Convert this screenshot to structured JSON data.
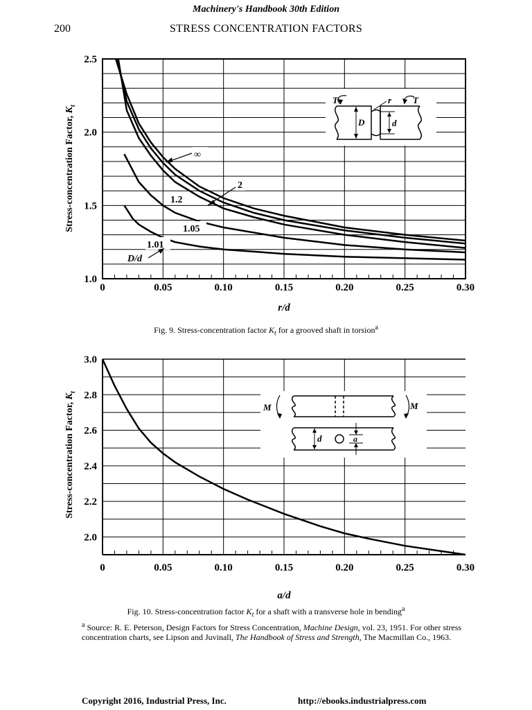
{
  "header": {
    "book_title": "Machinery's Handbook 30th Edition",
    "page_number": "200",
    "section_title": "STRESS CONCENTRATION FACTORS"
  },
  "fig9": {
    "caption_prefix": "Fig. 9. Stress-concentration factor ",
    "caption_suffix": " for a grooved shaft in torsion",
    "caption_sup": "a"
  },
  "fig10": {
    "caption_prefix": "Fig. 10. Stress-concentration factor ",
    "caption_suffix": " for a shaft with a transverse hole in bending",
    "caption_sup": "a"
  },
  "kt_symbol": {
    "main": "K",
    "sub": "t"
  },
  "footnote": {
    "sup": "a",
    "part1": " Source: R. E. Peterson, Design Factors for Stress Concentration, ",
    "journal": "Machine Design",
    "part2": ", vol. 23, 1951. For other stress concentration charts, see Lipson and Juvinall, ",
    "book": "The Handbook of Stress and Strength",
    "part3": ", The Macmillan Co., 1963."
  },
  "footer": {
    "copyright": "Copyright 2016, Industrial Press, Inc.",
    "url": "http://ebooks.industrialpress.com"
  },
  "chart_data": [
    {
      "type": "line",
      "ylabel": "Stress-concentration Factor, K",
      "ylabel_sub": "t",
      "xlabel": "r/d",
      "xlim": [
        0,
        0.3
      ],
      "ylim": [
        1.0,
        2.5
      ],
      "x_ticks": [
        0,
        0.05,
        0.1,
        0.15,
        0.2,
        0.25,
        0.3
      ],
      "x_tick_labels": [
        "0",
        "0.05",
        "0.10",
        "0.15",
        "0.20",
        "0.25",
        "0.30"
      ],
      "y_ticks": [
        1.0,
        1.5,
        2.0,
        2.5
      ],
      "y_tick_labels": [
        "1.0",
        "1.5",
        "2.0",
        "2.5"
      ],
      "grid": true,
      "param_label": "D/d",
      "series": [
        {
          "name": "∞",
          "x": [
            0.011,
            0.02,
            0.03,
            0.04,
            0.05,
            0.06,
            0.08,
            0.1,
            0.125,
            0.15,
            0.2,
            0.25,
            0.3
          ],
          "y": [
            2.5,
            2.26,
            2.06,
            1.93,
            1.83,
            1.75,
            1.63,
            1.55,
            1.48,
            1.43,
            1.35,
            1.3,
            1.26
          ]
        },
        {
          "name": "2",
          "x": [
            0.012,
            0.02,
            0.03,
            0.04,
            0.05,
            0.06,
            0.08,
            0.1,
            0.125,
            0.15,
            0.2,
            0.25,
            0.3
          ],
          "y": [
            2.5,
            2.21,
            2.02,
            1.89,
            1.79,
            1.71,
            1.6,
            1.52,
            1.45,
            1.4,
            1.33,
            1.28,
            1.24
          ]
        },
        {
          "name": "1.2",
          "x": [
            0.013,
            0.02,
            0.03,
            0.04,
            0.05,
            0.06,
            0.08,
            0.1,
            0.125,
            0.15,
            0.2,
            0.25,
            0.3
          ],
          "y": [
            2.5,
            2.15,
            1.96,
            1.84,
            1.74,
            1.66,
            1.56,
            1.48,
            1.42,
            1.37,
            1.3,
            1.25,
            1.21
          ]
        },
        {
          "name": "1.05",
          "x": [
            0.018,
            0.03,
            0.04,
            0.05,
            0.06,
            0.08,
            0.1,
            0.15,
            0.2,
            0.25,
            0.3
          ],
          "y": [
            1.85,
            1.66,
            1.57,
            1.5,
            1.45,
            1.39,
            1.35,
            1.28,
            1.23,
            1.2,
            1.18
          ]
        },
        {
          "name": "1.01",
          "x": [
            0.018,
            0.025,
            0.03,
            0.04,
            0.05,
            0.06,
            0.08,
            0.1,
            0.15,
            0.2,
            0.25,
            0.3
          ],
          "y": [
            1.5,
            1.41,
            1.37,
            1.32,
            1.28,
            1.25,
            1.22,
            1.2,
            1.17,
            1.15,
            1.14,
            1.13
          ]
        }
      ]
    },
    {
      "type": "line",
      "ylabel": "Stress-concentration Factor, K",
      "ylabel_sub": "t",
      "xlabel": "a/d",
      "xlim": [
        0,
        0.3
      ],
      "ylim": [
        1.9,
        3.0
      ],
      "x_ticks": [
        0,
        0.05,
        0.1,
        0.15,
        0.2,
        0.25,
        0.3
      ],
      "x_tick_labels": [
        "0",
        "0.05",
        "0.10",
        "0.15",
        "0.20",
        "0.25",
        "0.30"
      ],
      "y_ticks": [
        2.0,
        2.2,
        2.4,
        2.6,
        2.8,
        3.0
      ],
      "y_tick_labels": [
        "2.0",
        "2.2",
        "2.4",
        "2.6",
        "2.8",
        "3.0"
      ],
      "grid": true,
      "series": [
        {
          "x": [
            0,
            0.01,
            0.02,
            0.03,
            0.04,
            0.05,
            0.06,
            0.08,
            0.1,
            0.12,
            0.15,
            0.18,
            0.2,
            0.22,
            0.25,
            0.28,
            0.3
          ],
          "y": [
            3.0,
            2.85,
            2.72,
            2.61,
            2.53,
            2.47,
            2.42,
            2.34,
            2.27,
            2.21,
            2.13,
            2.06,
            2.02,
            1.99,
            1.95,
            1.92,
            1.9
          ]
        }
      ]
    }
  ],
  "diagrams": {
    "fig9_labels": {
      "torque_left": "T",
      "torque_right": "T",
      "radius": "r",
      "big_diameter": "D",
      "small_diameter": "d"
    },
    "fig10_labels": {
      "moment_left": "M",
      "moment_right": "M",
      "diameter": "d",
      "hole": "a"
    }
  }
}
